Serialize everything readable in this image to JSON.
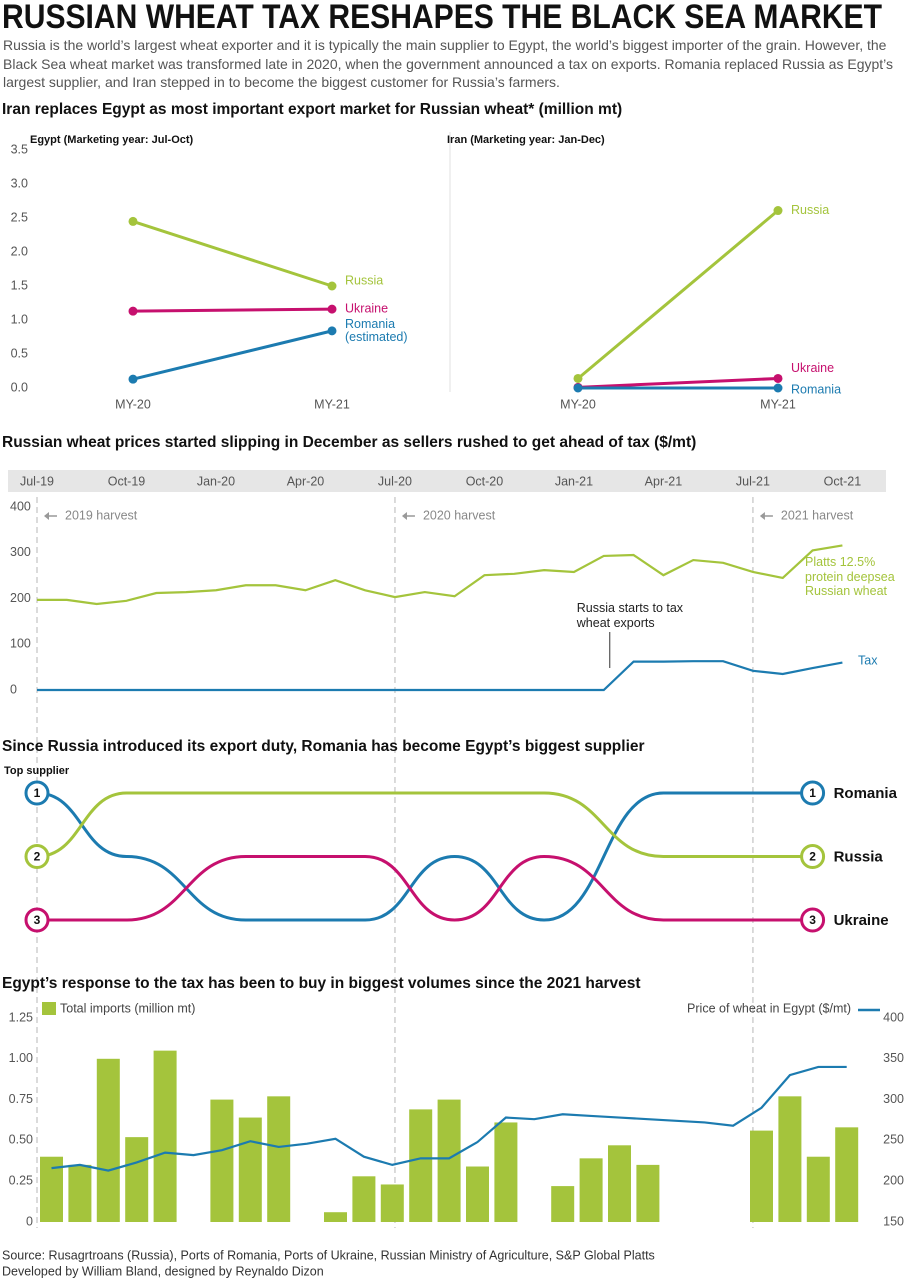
{
  "header": {
    "title": "RUSSIAN WHEAT TAX RESHAPES THE BLACK SEA MARKET",
    "subtitle": "Russia is the world’s largest wheat exporter and it is typically the main supplier to Egypt, the world’s biggest importer of the grain. However, the Black Sea wheat market was transformed late in 2020, when the government announced a tax on exports. Romania replaced Russia as Egypt’s largest supplier, and Iran stepped in to become the biggest customer for Russia’s farmers."
  },
  "chart_data": [
    {
      "type": "line",
      "title": "Iran replaces Egypt as most important export market for Russian wheat* (million mt)",
      "ylim": [
        0,
        3.5
      ],
      "yticks": [
        {
          "value": 0,
          "label": "0.0"
        },
        0.5,
        {
          "value": 1,
          "label": "1.0"
        },
        1.5,
        {
          "value": 2,
          "label": "2.0"
        },
        2.5,
        {
          "value": 3,
          "label": "3.0"
        },
        3.5
      ],
      "panels": [
        {
          "title": "Egypt (Marketing year: Jul-Oct)",
          "categories": [
            "MY-20",
            "MY-21"
          ],
          "series": [
            {
              "name": "Russia",
              "color": "#a4c43c",
              "values": [
                2.45,
                1.5
              ]
            },
            {
              "name": "Ukraine",
              "color": "#c6106e",
              "values": [
                1.13,
                1.16
              ]
            },
            {
              "name": "Romania",
              "note": "(estimated)",
              "color": "#1c7bb0",
              "values": [
                0.13,
                0.84
              ]
            }
          ]
        },
        {
          "title": "Iran (Marketing year: Jan-Dec)",
          "categories": [
            "MY-20",
            "MY-21"
          ],
          "series": [
            {
              "name": "Russia",
              "color": "#a4c43c",
              "values": [
                0.14,
                2.61
              ]
            },
            {
              "name": "Ukraine",
              "color": "#c6106e",
              "values": [
                0.01,
                0.14
              ]
            },
            {
              "name": "Romania",
              "color": "#1c7bb0",
              "values": [
                0,
                0
              ]
            }
          ]
        }
      ]
    },
    {
      "type": "line",
      "title": "Russian wheat prices started slipping in December as sellers rushed to get ahead of tax ($/mt)",
      "x": [
        "Jul-19",
        "Aug-19",
        "Sep-19",
        "Oct-19",
        "Nov-19",
        "Dec-19",
        "Jan-20",
        "Feb-20",
        "Mar-20",
        "Apr-20",
        "May-20",
        "Jun-20",
        "Jul-20",
        "Aug-20",
        "Sep-20",
        "Oct-20",
        "Nov-20",
        "Dec-20",
        "Jan-21",
        "Feb-21",
        "Mar-21",
        "Apr-21",
        "May-21",
        "Jun-21",
        "Jul-21",
        "Aug-21",
        "Sep-21",
        "Oct-21"
      ],
      "xticks": [
        "Jul-19",
        "Oct-19",
        "Jan-20",
        "Apr-20",
        "Jul-20",
        "Oct-20",
        "Jan-21",
        "Apr-21",
        "Jul-21",
        "Oct-21"
      ],
      "ylim": [
        0,
        400
      ],
      "yticks": [
        0,
        100,
        200,
        300,
        400
      ],
      "series": [
        {
          "name": "Platts 12.5% protein deepsea Russian wheat",
          "color": "#a4c43c",
          "values": [
            197,
            197,
            188,
            195,
            212,
            214,
            218,
            229,
            229,
            218,
            240,
            218,
            203,
            214,
            205,
            251,
            254,
            262,
            258,
            293,
            295,
            251,
            284,
            278,
            258,
            245,
            305,
            316
          ]
        },
        {
          "name": "Tax",
          "color": "#1c7bb0",
          "values": [
            0,
            0,
            0,
            0,
            0,
            0,
            0,
            0,
            0,
            0,
            0,
            0,
            0,
            0,
            0,
            0,
            0,
            0,
            0,
            0,
            62,
            62,
            63,
            63,
            42,
            35,
            48,
            60
          ]
        }
      ],
      "harvests": [
        {
          "label": "2019 harvest",
          "x": "Jul-19"
        },
        {
          "label": "2020 harvest",
          "x": "Jul-20"
        },
        {
          "label": "2021 harvest",
          "x": "Jul-21"
        }
      ],
      "annotation": {
        "text": "Russia starts to tax wheat exports",
        "x": "Feb-21"
      }
    },
    {
      "type": "bump",
      "title": "Since Russia introduced its export duty, Romania has become Egypt’s biggest supplier",
      "ylabel": "Top supplier",
      "x": [
        "Jul-19",
        "Oct-19",
        "Feb-20",
        "Jun-20",
        "Sep-20",
        "Dec-20",
        "Apr-21",
        "Sep-21"
      ],
      "ylim": [
        1,
        3
      ],
      "series": [
        {
          "name": "Romania",
          "color": "#1c7bb0",
          "values": [
            1,
            2,
            3,
            3,
            2,
            3,
            1,
            1
          ]
        },
        {
          "name": "Russia",
          "color": "#a4c43c",
          "values": [
            2,
            1,
            1,
            1,
            1,
            1,
            2,
            2
          ]
        },
        {
          "name": "Ukraine",
          "color": "#c6106e",
          "values": [
            3,
            3,
            2,
            2,
            3,
            2,
            3,
            3
          ]
        }
      ]
    },
    {
      "type": "combo",
      "title": "Egypt’s response to the tax has been to buy in biggest volumes since the 2021 harvest",
      "ylim": [
        0,
        1.25
      ],
      "yticks": [
        0,
        0.25,
        {
          "value": 0.5,
          "label": "0.50"
        },
        0.75,
        {
          "value": 1,
          "label": "1.00"
        },
        1.25
      ],
      "y2lim": [
        150,
        400
      ],
      "y2ticks": [
        150,
        200,
        250,
        300,
        350,
        400
      ],
      "series": [
        {
          "name": "Total imports (million mt)",
          "type": "bar",
          "color": "#a4c43c",
          "values": [
            0.4,
            0.35,
            1.0,
            0.52,
            1.05,
            0,
            0.75,
            0.64,
            0.77,
            0,
            0.06,
            0.28,
            0.23,
            0.69,
            0.75,
            0.34,
            0.61,
            0,
            0.22,
            0.39,
            0.47,
            0.35,
            0,
            0,
            0,
            0.56,
            0.77,
            0.4,
            0.58
          ]
        },
        {
          "name": "Price of wheat in Egypt ($/mt)",
          "type": "line",
          "axis": "y2",
          "color": "#1c7bb0",
          "values": [
            216,
            220,
            213,
            223,
            235,
            232,
            238,
            249,
            242,
            246,
            252,
            230,
            220,
            228,
            228,
            248,
            278,
            276,
            282,
            280,
            278,
            276,
            274,
            272,
            268,
            290,
            330,
            340,
            340
          ]
        }
      ]
    }
  ],
  "footer": {
    "source": "Source: Rusagrtroans (Russia), Ports of Romania, Ports of Ukraine, Russian Ministry of Agriculture, S&P Global Platts",
    "credit": "Developed by William Bland, designed by Reynaldo Dizon"
  }
}
